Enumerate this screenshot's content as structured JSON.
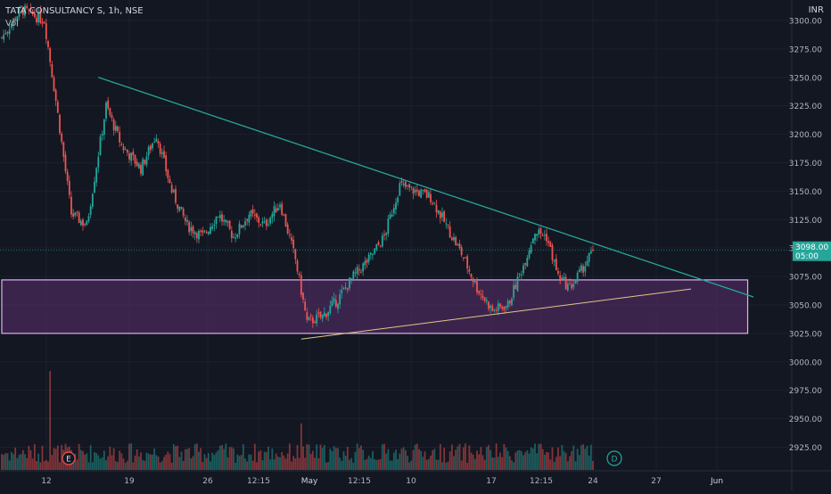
{
  "header": {
    "symbol_line": "TATA CONSULTANCY S, 1h, NSE",
    "volume_label": "Vol",
    "currency": "INR"
  },
  "price_tag": {
    "price": "3098.00",
    "countdown": "05:00"
  },
  "markers": {
    "earnings": "E",
    "dividend": "D"
  },
  "colors": {
    "background": "#131722",
    "up": "#26a69a",
    "down": "#ef5350",
    "trendline_upper": "#26a69a",
    "trendline_lower": "#e0c88a",
    "zone_fill": "#4a2a5a",
    "zone_border": "#e0b0f0",
    "price_line": "#26a69a"
  },
  "chart_data": {
    "type": "candlestick",
    "title": "",
    "y_ticks": [
      3300,
      3275,
      3250,
      3225,
      3200,
      3175,
      3150,
      3125,
      3100,
      3075,
      3050,
      3025,
      3000,
      2975,
      2950,
      2925
    ],
    "y_tick_labels": [
      "3300.00",
      "3275.00",
      "3250.00",
      "3225.00",
      "3200.00",
      "3175.00",
      "3150.00",
      "3125.00",
      "3100.00",
      "3075.00",
      "3050.00",
      "3025.00",
      "3000.00",
      "2975.00",
      "2950.00",
      "2925.00"
    ],
    "x_tick_labels": [
      "12",
      "19",
      "26",
      "12:15",
      "May",
      "12:15",
      "10",
      "17",
      "12:15",
      "24",
      "27",
      "Jun"
    ],
    "ylim": [
      2905,
      3318
    ],
    "last_price": 3098,
    "annotations": [
      {
        "type": "trendline",
        "name": "descending resistance",
        "from": {
          "bar": 50,
          "price": 3250
        },
        "to": {
          "bar": 398,
          "price": 3057
        }
      },
      {
        "type": "trendline",
        "name": "ascending support",
        "from": {
          "bar": 155,
          "price": 3020
        },
        "to": {
          "bar": 355,
          "price": 3064
        }
      },
      {
        "type": "zone",
        "name": "support zone",
        "x_from_bar": 0,
        "x_to_bar": 396,
        "price_top": 3072,
        "price_bottom": 3025
      }
    ],
    "key_points": [
      {
        "bar": 0,
        "price": 3285
      },
      {
        "bar": 10,
        "price": 3310
      },
      {
        "bar": 22,
        "price": 3300
      },
      {
        "bar": 28,
        "price": 3230
      },
      {
        "bar": 36,
        "price": 3130
      },
      {
        "bar": 44,
        "price": 3120
      },
      {
        "bar": 54,
        "price": 3225
      },
      {
        "bar": 62,
        "price": 3190
      },
      {
        "bar": 72,
        "price": 3170
      },
      {
        "bar": 80,
        "price": 3200
      },
      {
        "bar": 88,
        "price": 3150
      },
      {
        "bar": 96,
        "price": 3120
      },
      {
        "bar": 104,
        "price": 3110
      },
      {
        "bar": 112,
        "price": 3130
      },
      {
        "bar": 120,
        "price": 3110
      },
      {
        "bar": 128,
        "price": 3130
      },
      {
        "bar": 136,
        "price": 3120
      },
      {
        "bar": 144,
        "price": 3140
      },
      {
        "bar": 152,
        "price": 3090
      },
      {
        "bar": 158,
        "price": 3035
      },
      {
        "bar": 166,
        "price": 3040
      },
      {
        "bar": 174,
        "price": 3055
      },
      {
        "bar": 182,
        "price": 3075
      },
      {
        "bar": 190,
        "price": 3090
      },
      {
        "bar": 198,
        "price": 3110
      },
      {
        "bar": 206,
        "price": 3155
      },
      {
        "bar": 214,
        "price": 3150
      },
      {
        "bar": 222,
        "price": 3145
      },
      {
        "bar": 230,
        "price": 3120
      },
      {
        "bar": 238,
        "price": 3095
      },
      {
        "bar": 246,
        "price": 3065
      },
      {
        "bar": 254,
        "price": 3045
      },
      {
        "bar": 262,
        "price": 3050
      },
      {
        "bar": 270,
        "price": 3085
      },
      {
        "bar": 276,
        "price": 3115
      },
      {
        "bar": 282,
        "price": 3110
      },
      {
        "bar": 288,
        "price": 3075
      },
      {
        "bar": 294,
        "price": 3065
      },
      {
        "bar": 300,
        "price": 3080
      },
      {
        "bar": 306,
        "price": 3098
      }
    ]
  }
}
